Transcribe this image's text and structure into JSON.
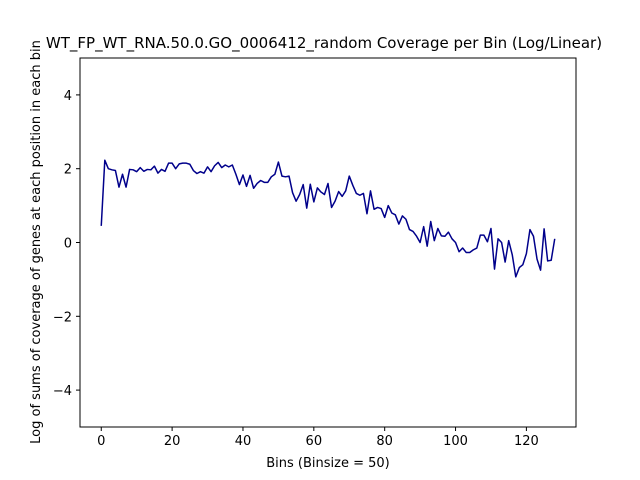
{
  "chart_data": {
    "type": "line",
    "title": "WT_FP_WT_RNA.50.0.GO_0006412_random Coverage per Bin (Log/Linear)",
    "xlabel": "Bins (Binsize = 50)",
    "ylabel": "Log of sums of coverage of genes at each position in each bin",
    "xlim": [
      -6,
      134
    ],
    "ylim": [
      -5,
      5
    ],
    "xticks": [
      0,
      20,
      40,
      60,
      80,
      100,
      120
    ],
    "yticks": [
      -4,
      -2,
      0,
      2,
      4
    ],
    "line_color": "#00008b",
    "grid": false,
    "series": [
      {
        "x": [
          0,
          1,
          2,
          3,
          4,
          5,
          6,
          7,
          8,
          9,
          10,
          11,
          12,
          13,
          14,
          15,
          16,
          17,
          18,
          19,
          20,
          21,
          22,
          23,
          24,
          25,
          26,
          27,
          28,
          29,
          30,
          31,
          32,
          33,
          34,
          35,
          36,
          37,
          38,
          39,
          40,
          41,
          42,
          43,
          44,
          45,
          46,
          47,
          48,
          49,
          50,
          51,
          52,
          53,
          54,
          55,
          56,
          57,
          58,
          59,
          60,
          61,
          62,
          63,
          64,
          65,
          66,
          67,
          68,
          69,
          70,
          71,
          72,
          73,
          74,
          75,
          76,
          77,
          78,
          79,
          80,
          81,
          82,
          83,
          84,
          85,
          86,
          87,
          88,
          89,
          90,
          91,
          92,
          93,
          94,
          95,
          96,
          97,
          98,
          99,
          100,
          101,
          102,
          103,
          104,
          105,
          106,
          107,
          108,
          109,
          110,
          111,
          112,
          113,
          114,
          115,
          116,
          117,
          118,
          119,
          120,
          121,
          122,
          123,
          124,
          125,
          126,
          127,
          128
        ],
        "values": [
          0.45,
          2.23,
          2.0,
          1.97,
          1.95,
          1.5,
          1.85,
          1.5,
          1.98,
          1.97,
          1.92,
          2.03,
          1.93,
          1.98,
          1.97,
          2.07,
          1.88,
          1.98,
          1.93,
          2.15,
          2.15,
          2.0,
          2.13,
          2.15,
          2.15,
          2.12,
          1.95,
          1.87,
          1.92,
          1.88,
          2.05,
          1.92,
          2.08,
          2.17,
          2.03,
          2.1,
          2.05,
          2.1,
          1.85,
          1.57,
          1.83,
          1.52,
          1.82,
          1.47,
          1.6,
          1.68,
          1.63,
          1.63,
          1.78,
          1.85,
          2.18,
          1.8,
          1.78,
          1.8,
          1.35,
          1.12,
          1.3,
          1.57,
          0.93,
          1.58,
          1.1,
          1.48,
          1.37,
          1.3,
          1.6,
          0.95,
          1.12,
          1.38,
          1.25,
          1.4,
          1.8,
          1.55,
          1.33,
          1.28,
          1.33,
          0.78,
          1.4,
          0.9,
          0.95,
          0.92,
          0.68,
          1.0,
          0.8,
          0.75,
          0.5,
          0.72,
          0.63,
          0.35,
          0.3,
          0.17,
          0.0,
          0.43,
          -0.1,
          0.57,
          0.05,
          0.38,
          0.18,
          0.17,
          0.28,
          0.1,
          0.0,
          -0.25,
          -0.15,
          -0.27,
          -0.27,
          -0.2,
          -0.15,
          0.2,
          0.2,
          0.02,
          0.38,
          -0.72,
          0.1,
          0.0,
          -0.53,
          0.05,
          -0.33,
          -0.93,
          -0.68,
          -0.6,
          -0.3,
          0.35,
          0.17,
          -0.45,
          -0.75,
          0.37,
          -0.5,
          -0.48,
          0.1
        ]
      }
    ]
  }
}
